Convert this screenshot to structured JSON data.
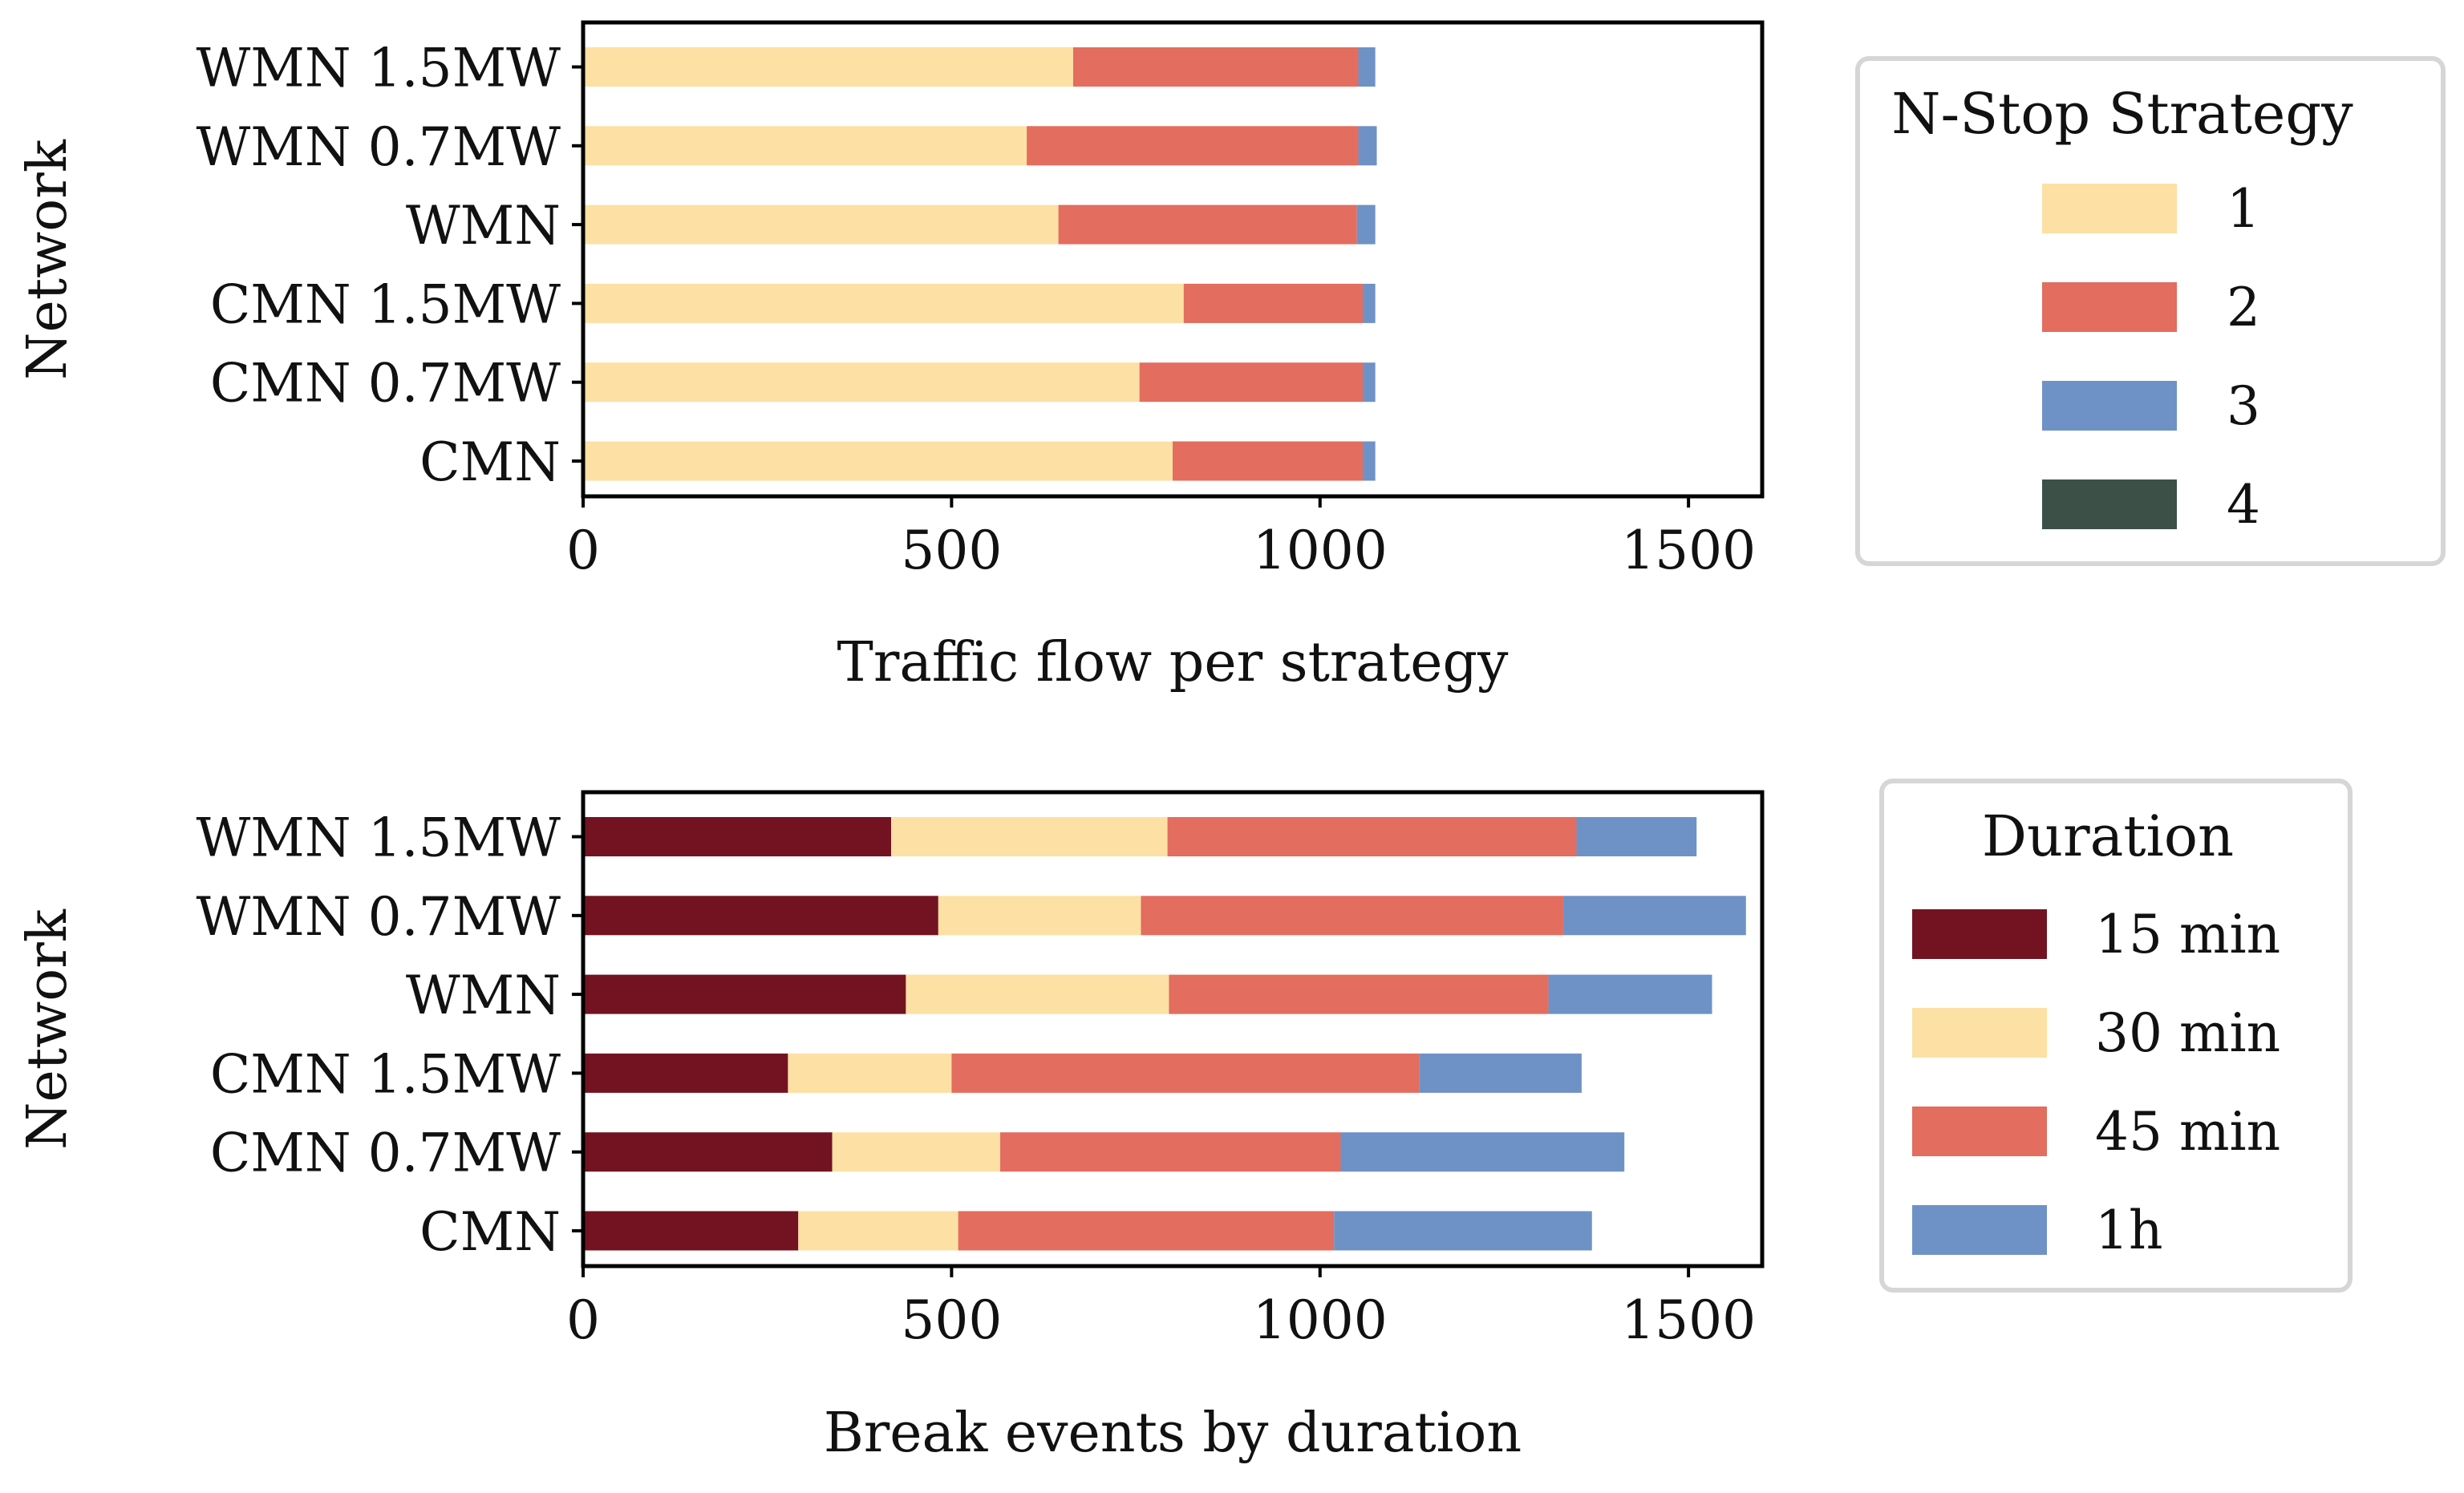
{
  "chart_data": [
    {
      "type": "bar",
      "orientation": "horizontal",
      "stacked": true,
      "categories": [
        "CMN",
        "CMN 0.7MW",
        "CMN 1.5MW",
        "WMN",
        "WMN 0.7MW",
        "WMN 1.5MW"
      ],
      "series": [
        {
          "name": "1",
          "color": "#fde0a4",
          "values": [
            800,
            755,
            815,
            645,
            602,
            665
          ]
        },
        {
          "name": "2",
          "color": "#e36d5f",
          "values": [
            258,
            303,
            243,
            405,
            450,
            387
          ]
        },
        {
          "name": "3",
          "color": "#6e92c6",
          "values": [
            17,
            17,
            17,
            25,
            25,
            23
          ]
        },
        {
          "name": "4",
          "color": "#3c5048",
          "values": [
            0,
            0,
            0,
            0,
            0,
            0
          ]
        }
      ],
      "xlabel": "Traffic flow per strategy",
      "ylabel": "Network",
      "xlim": [
        0,
        1600
      ],
      "xticks": [
        "0",
        "500",
        "1000",
        "1500"
      ],
      "legend": {
        "title": "N-Stop Strategy",
        "position": "right"
      }
    },
    {
      "type": "bar",
      "orientation": "horizontal",
      "stacked": true,
      "categories": [
        "CMN",
        "CMN 0.7MW",
        "CMN 1.5MW",
        "WMN",
        "WMN 0.7MW",
        "WMN 1.5MW"
      ],
      "series": [
        {
          "name": "15 min",
          "color": "#731322",
          "values": [
            292,
            338,
            278,
            438,
            482,
            418
          ]
        },
        {
          "name": "30 min",
          "color": "#fde0a4",
          "values": [
            217,
            228,
            222,
            357,
            275,
            375
          ]
        },
        {
          "name": "45 min",
          "color": "#e36d5f",
          "values": [
            510,
            462,
            635,
            515,
            573,
            555
          ]
        },
        {
          "name": "1h",
          "color": "#6e92c6",
          "values": [
            350,
            385,
            220,
            222,
            248,
            163
          ]
        }
      ],
      "xlabel": "Break events by duration",
      "ylabel": "Network",
      "xlim": [
        0,
        1600
      ],
      "xticks": [
        "0",
        "500",
        "1000",
        "1500"
      ],
      "legend": {
        "title": "Duration",
        "position": "right"
      }
    }
  ]
}
